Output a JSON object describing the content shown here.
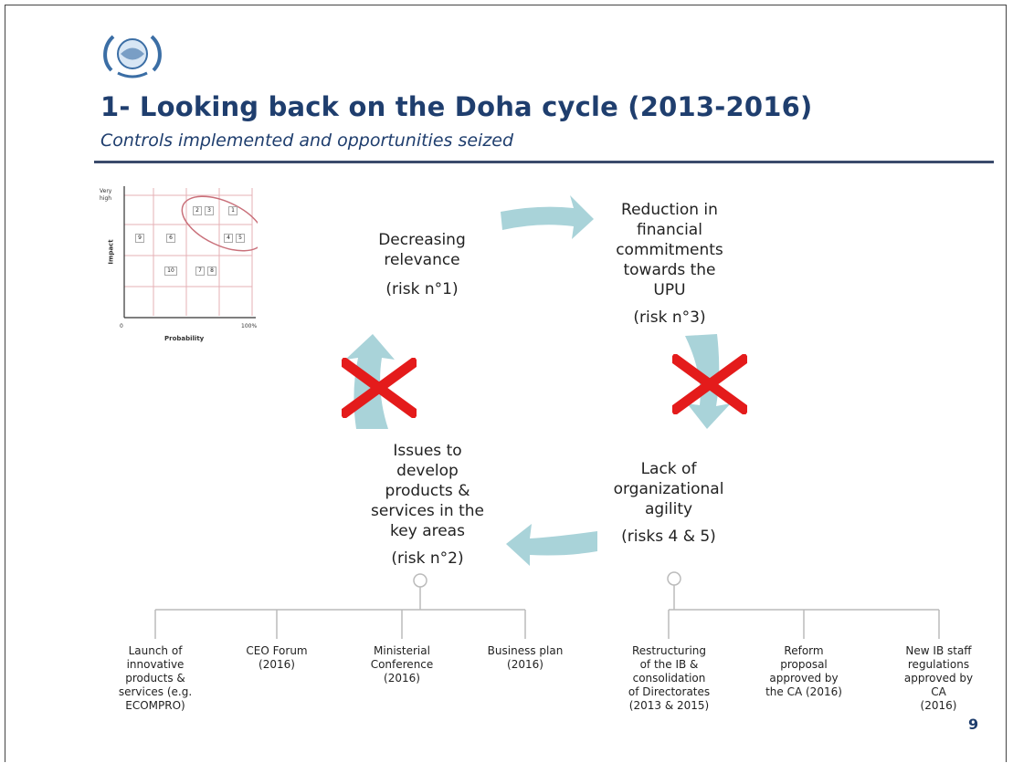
{
  "slide": {
    "title": "1- Looking back on the Doha cycle (2013-2016)",
    "subtitle": "Controls implemented and opportunities seized",
    "page_number": "9"
  },
  "matrix": {
    "y_axis_label": "Impact",
    "y_top_label_1": "Very",
    "y_top_label_2": "high",
    "x_axis_label": "Probability",
    "x_min": "0",
    "x_max": "100%",
    "boxes": [
      "2",
      "3",
      "1",
      "9",
      "6",
      "4",
      "5",
      "10",
      "7",
      "8"
    ]
  },
  "cycle": {
    "risk_top_left": {
      "line1": "Decreasing",
      "line2": "relevance",
      "ref": "(risk n°1)"
    },
    "risk_top_right": {
      "line1": "Reduction in",
      "line2": "financial",
      "line3": "commitments",
      "line4": "towards the",
      "line5": "UPU",
      "ref": "(risk n°3)"
    },
    "risk_bottom_right": {
      "line1": "Lack of",
      "line2": "organizational",
      "line3": "agility",
      "ref": "(risks 4 & 5)"
    },
    "risk_bottom_left": {
      "line1": "Issues to",
      "line2": "develop",
      "line3": "products &",
      "line4": "services in the",
      "line5": "key areas",
      "ref": "(risk n°2)"
    }
  },
  "controls_left": [
    {
      "lines": [
        "Launch of",
        "innovative",
        "products &",
        "services (e.g.",
        "ECOMPRO)"
      ]
    },
    {
      "lines": [
        "CEO Forum",
        "(2016)"
      ]
    },
    {
      "lines": [
        "Ministerial",
        "Conference",
        "(2016)"
      ]
    },
    {
      "lines": [
        "Business plan",
        "(2016)"
      ]
    }
  ],
  "controls_right": [
    {
      "lines": [
        "Restructuring",
        "of the IB &",
        "consolidation",
        "of Directorates",
        "(2013 & 2015)"
      ]
    },
    {
      "lines": [
        "Reform",
        "proposal",
        "approved by",
        "the CA (2016)"
      ]
    },
    {
      "lines": [
        "New IB staff",
        "regulations",
        "approved by",
        "CA",
        "(2016)"
      ]
    }
  ],
  "colors": {
    "title": "#1f3e6e",
    "arrow": "#a9d3d9",
    "cross": "#e41b1b",
    "ellipse": "#c9707a"
  }
}
